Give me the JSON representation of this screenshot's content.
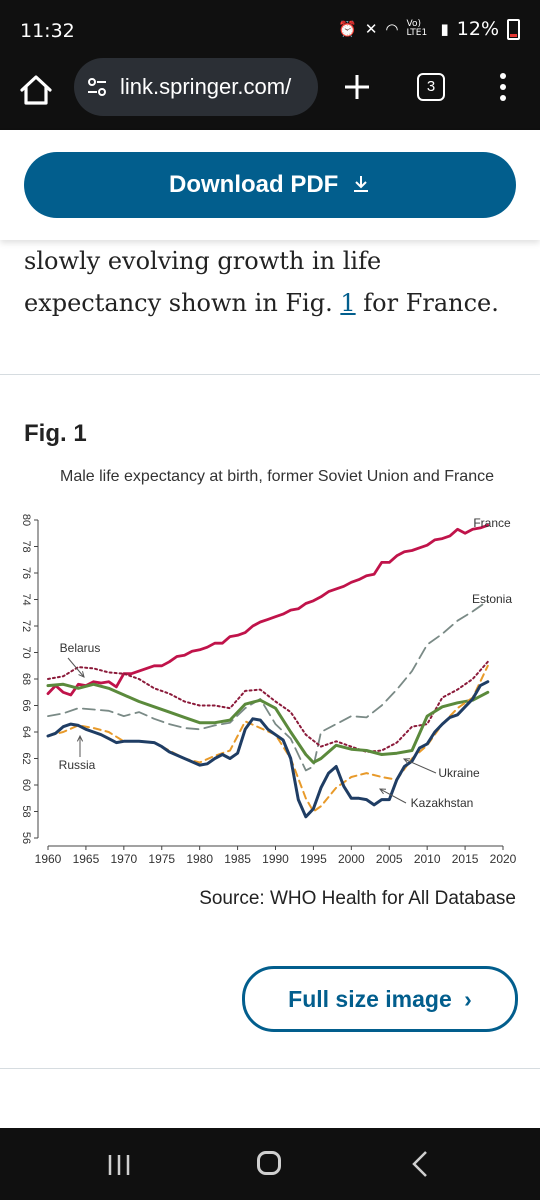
{
  "status": {
    "time": "11:32",
    "signal": "Vo) LTE1",
    "battery": "12%"
  },
  "browser": {
    "url": "link.springer.com/",
    "tab_count": "3"
  },
  "download_pdf": {
    "label": "Download PDF",
    "icon": "download-icon"
  },
  "paragraph": {
    "text_before": "slowly evolving growth in life expectancy shown in Fig. ",
    "link": "1",
    "text_after": " for France."
  },
  "figure": {
    "label": "Fig. 1",
    "source": "Source: WHO Health for All Database",
    "full_size_label": "Full size image",
    "full_size_icon": "chevron-right-icon"
  },
  "chart_data": {
    "type": "line",
    "title": "Male life expectancy at birth, former Soviet Union and France",
    "xlabel": "",
    "ylabel": "",
    "xlim": [
      1960,
      2020
    ],
    "ylim": [
      56,
      80
    ],
    "xticks": [
      1960,
      1965,
      1970,
      1975,
      1980,
      1985,
      1990,
      1995,
      2000,
      2005,
      2010,
      2015,
      2020
    ],
    "yticks": [
      56,
      58,
      60,
      62,
      64,
      66,
      68,
      70,
      72,
      74,
      76,
      78,
      80
    ],
    "grid": false,
    "series": [
      {
        "name": "France",
        "color": "#c0134a",
        "style": "solid",
        "points": [
          [
            1960,
            66.9
          ],
          [
            1961,
            67.5
          ],
          [
            1962,
            67.0
          ],
          [
            1963,
            66.8
          ],
          [
            1964,
            67.6
          ],
          [
            1965,
            67.5
          ],
          [
            1966,
            67.8
          ],
          [
            1967,
            67.7
          ],
          [
            1968,
            67.8
          ],
          [
            1969,
            67.4
          ],
          [
            1970,
            68.4
          ],
          [
            1971,
            68.4
          ],
          [
            1972,
            68.6
          ],
          [
            1973,
            68.8
          ],
          [
            1974,
            69.0
          ],
          [
            1975,
            69.0
          ],
          [
            1976,
            69.3
          ],
          [
            1977,
            69.7
          ],
          [
            1978,
            69.8
          ],
          [
            1979,
            70.1
          ],
          [
            1980,
            70.2
          ],
          [
            1981,
            70.4
          ],
          [
            1982,
            70.7
          ],
          [
            1983,
            70.7
          ],
          [
            1984,
            71.2
          ],
          [
            1985,
            71.3
          ],
          [
            1986,
            71.5
          ],
          [
            1987,
            72.0
          ],
          [
            1988,
            72.3
          ],
          [
            1989,
            72.5
          ],
          [
            1990,
            72.7
          ],
          [
            1991,
            72.9
          ],
          [
            1992,
            73.2
          ],
          [
            1993,
            73.3
          ],
          [
            1994,
            73.7
          ],
          [
            1995,
            73.9
          ],
          [
            1996,
            74.2
          ],
          [
            1997,
            74.6
          ],
          [
            1998,
            74.8
          ],
          [
            1999,
            75.0
          ],
          [
            2000,
            75.3
          ],
          [
            2001,
            75.5
          ],
          [
            2002,
            75.8
          ],
          [
            2003,
            75.9
          ],
          [
            2004,
            76.8
          ],
          [
            2005,
            76.8
          ],
          [
            2006,
            77.3
          ],
          [
            2007,
            77.6
          ],
          [
            2008,
            77.7
          ],
          [
            2009,
            77.9
          ],
          [
            2010,
            78.1
          ],
          [
            2011,
            78.5
          ],
          [
            2012,
            78.6
          ],
          [
            2013,
            78.8
          ],
          [
            2014,
            79.3
          ],
          [
            2015,
            79.0
          ],
          [
            2016,
            79.3
          ],
          [
            2017,
            79.4
          ],
          [
            2018,
            79.6
          ]
        ]
      },
      {
        "name": "Estonia",
        "color": "#7a8a86",
        "style": "long-dash",
        "points": [
          [
            1960,
            65.2
          ],
          [
            1962,
            65.4
          ],
          [
            1964,
            65.8
          ],
          [
            1966,
            65.7
          ],
          [
            1968,
            65.6
          ],
          [
            1970,
            65.2
          ],
          [
            1972,
            65.5
          ],
          [
            1974,
            65.0
          ],
          [
            1976,
            64.6
          ],
          [
            1978,
            64.3
          ],
          [
            1980,
            64.2
          ],
          [
            1982,
            64.5
          ],
          [
            1984,
            64.7
          ],
          [
            1986,
            65.8
          ],
          [
            1988,
            66.5
          ],
          [
            1990,
            64.6
          ],
          [
            1992,
            63.5
          ],
          [
            1994,
            61.1
          ],
          [
            1995,
            61.4
          ],
          [
            1996,
            64.0
          ],
          [
            1998,
            64.6
          ],
          [
            2000,
            65.2
          ],
          [
            2002,
            65.1
          ],
          [
            2004,
            66.0
          ],
          [
            2006,
            67.2
          ],
          [
            2008,
            68.6
          ],
          [
            2010,
            70.6
          ],
          [
            2012,
            71.4
          ],
          [
            2014,
            72.4
          ],
          [
            2016,
            73.1
          ],
          [
            2018,
            73.9
          ]
        ]
      },
      {
        "name": "Belarus",
        "color": "#8b1a3a",
        "style": "dotted",
        "points": [
          [
            1960,
            68.0
          ],
          [
            1962,
            68.2
          ],
          [
            1964,
            68.9
          ],
          [
            1966,
            68.8
          ],
          [
            1968,
            68.5
          ],
          [
            1970,
            68.4
          ],
          [
            1972,
            68.0
          ],
          [
            1974,
            67.3
          ],
          [
            1976,
            66.9
          ],
          [
            1978,
            66.3
          ],
          [
            1980,
            66.0
          ],
          [
            1982,
            66.0
          ],
          [
            1984,
            65.8
          ],
          [
            1986,
            67.1
          ],
          [
            1988,
            67.2
          ],
          [
            1990,
            66.3
          ],
          [
            1992,
            65.5
          ],
          [
            1994,
            63.8
          ],
          [
            1996,
            62.9
          ],
          [
            1998,
            63.3
          ],
          [
            2000,
            62.9
          ],
          [
            2002,
            62.5
          ],
          [
            2004,
            62.6
          ],
          [
            2006,
            63.2
          ],
          [
            2008,
            64.4
          ],
          [
            2010,
            64.6
          ],
          [
            2012,
            66.6
          ],
          [
            2014,
            67.2
          ],
          [
            2016,
            68.0
          ],
          [
            2018,
            69.3
          ]
        ]
      },
      {
        "name": "Ukraine",
        "color": "#5b8a3c",
        "style": "solid-thick",
        "points": [
          [
            1960,
            67.5
          ],
          [
            1962,
            67.6
          ],
          [
            1964,
            67.3
          ],
          [
            1966,
            67.6
          ],
          [
            1968,
            67.3
          ],
          [
            1970,
            66.8
          ],
          [
            1972,
            66.3
          ],
          [
            1974,
            65.9
          ],
          [
            1976,
            65.5
          ],
          [
            1978,
            65.1
          ],
          [
            1980,
            64.7
          ],
          [
            1982,
            64.7
          ],
          [
            1984,
            64.9
          ],
          [
            1986,
            66.1
          ],
          [
            1988,
            66.4
          ],
          [
            1990,
            65.8
          ],
          [
            1992,
            64.0
          ],
          [
            1994,
            62.3
          ],
          [
            1995,
            61.7
          ],
          [
            1996,
            62.0
          ],
          [
            1998,
            63.0
          ],
          [
            2000,
            62.7
          ],
          [
            2002,
            62.6
          ],
          [
            2004,
            62.3
          ],
          [
            2006,
            62.4
          ],
          [
            2008,
            62.6
          ],
          [
            2010,
            65.2
          ],
          [
            2012,
            65.9
          ],
          [
            2014,
            66.2
          ],
          [
            2016,
            66.4
          ],
          [
            2018,
            67.0
          ]
        ]
      },
      {
        "name": "Kazakhstan",
        "color": "#e89a2a",
        "style": "dashed",
        "points": [
          [
            1960,
            63.7
          ],
          [
            1962,
            64.0
          ],
          [
            1964,
            64.5
          ],
          [
            1966,
            64.3
          ],
          [
            1968,
            64.0
          ],
          [
            1970,
            63.3
          ],
          [
            1972,
            63.3
          ],
          [
            1974,
            63.2
          ],
          [
            1976,
            62.6
          ],
          [
            1978,
            62.0
          ],
          [
            1980,
            61.7
          ],
          [
            1982,
            62.2
          ],
          [
            1984,
            62.6
          ],
          [
            1986,
            64.8
          ],
          [
            1988,
            64.3
          ],
          [
            1990,
            63.8
          ],
          [
            1992,
            62.0
          ],
          [
            1994,
            59.0
          ],
          [
            1995,
            58.0
          ],
          [
            1996,
            58.4
          ],
          [
            1998,
            59.8
          ],
          [
            2000,
            60.6
          ],
          [
            2002,
            60.9
          ],
          [
            2004,
            60.6
          ],
          [
            2006,
            60.4
          ],
          [
            2008,
            62.0
          ],
          [
            2010,
            63.0
          ],
          [
            2012,
            64.6
          ],
          [
            2014,
            65.8
          ],
          [
            2016,
            66.6
          ],
          [
            2018,
            69.0
          ]
        ]
      },
      {
        "name": "Russia",
        "color": "#1f3d64",
        "style": "solid-thick",
        "points": [
          [
            1960,
            63.7
          ],
          [
            1961,
            63.9
          ],
          [
            1962,
            64.4
          ],
          [
            1963,
            64.6
          ],
          [
            1964,
            64.5
          ],
          [
            1965,
            64.2
          ],
          [
            1966,
            64.0
          ],
          [
            1967,
            63.8
          ],
          [
            1968,
            63.5
          ],
          [
            1969,
            63.2
          ],
          [
            1970,
            63.3
          ],
          [
            1972,
            63.3
          ],
          [
            1974,
            63.2
          ],
          [
            1975,
            62.9
          ],
          [
            1976,
            62.5
          ],
          [
            1978,
            62.0
          ],
          [
            1980,
            61.5
          ],
          [
            1981,
            61.6
          ],
          [
            1982,
            62.0
          ],
          [
            1983,
            62.3
          ],
          [
            1984,
            62.0
          ],
          [
            1985,
            62.4
          ],
          [
            1986,
            64.2
          ],
          [
            1987,
            65.0
          ],
          [
            1988,
            64.9
          ],
          [
            1989,
            64.2
          ],
          [
            1990,
            63.8
          ],
          [
            1991,
            63.4
          ],
          [
            1992,
            62.0
          ],
          [
            1993,
            58.9
          ],
          [
            1994,
            57.6
          ],
          [
            1995,
            58.2
          ],
          [
            1996,
            59.8
          ],
          [
            1997,
            60.9
          ],
          [
            1998,
            61.4
          ],
          [
            1999,
            59.9
          ],
          [
            2000,
            59.0
          ],
          [
            2001,
            59.0
          ],
          [
            2002,
            58.9
          ],
          [
            2003,
            58.5
          ],
          [
            2004,
            58.9
          ],
          [
            2005,
            58.9
          ],
          [
            2006,
            60.4
          ],
          [
            2007,
            61.4
          ],
          [
            2008,
            61.8
          ],
          [
            2009,
            62.8
          ],
          [
            2010,
            63.1
          ],
          [
            2011,
            64.0
          ],
          [
            2012,
            64.6
          ],
          [
            2013,
            65.1
          ],
          [
            2014,
            65.3
          ],
          [
            2015,
            65.9
          ],
          [
            2016,
            66.5
          ],
          [
            2017,
            67.5
          ],
          [
            2018,
            67.8
          ]
        ]
      }
    ],
    "annotations": [
      {
        "text": "France"
      },
      {
        "text": "Estonia"
      },
      {
        "text": "Belarus"
      },
      {
        "text": "Russia"
      },
      {
        "text": "Ukraine"
      },
      {
        "text": "Kazakhstan"
      }
    ]
  }
}
